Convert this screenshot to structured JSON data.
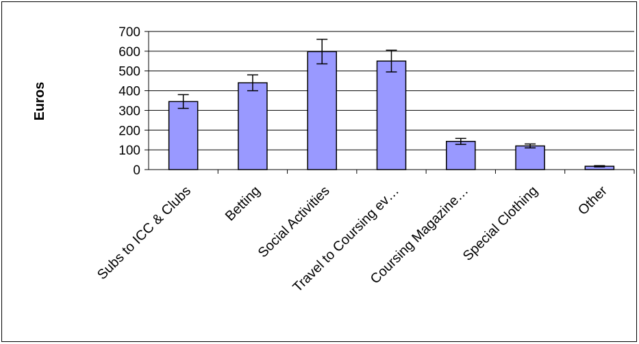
{
  "chart_data": {
    "type": "bar",
    "title": "",
    "xlabel": "",
    "ylabel": "Euros",
    "ylim": [
      0,
      700
    ],
    "yticks": [
      0,
      100,
      200,
      300,
      400,
      500,
      600,
      700
    ],
    "grid": true,
    "legend": "none",
    "categories": [
      "Subs to ICC & Clubs",
      "Betting",
      "Social Activities",
      "Travel to Coursing ev…",
      "Coursing Magazine…",
      "Special Clothing",
      "Other"
    ],
    "values": [
      345,
      440,
      598,
      550,
      143,
      120,
      17
    ],
    "error_bars": [
      35,
      40,
      62,
      55,
      15,
      10,
      3
    ],
    "colors": {
      "bar_fill": "#9999ff",
      "bar_stroke": "#000000",
      "grid": "#000000"
    }
  }
}
